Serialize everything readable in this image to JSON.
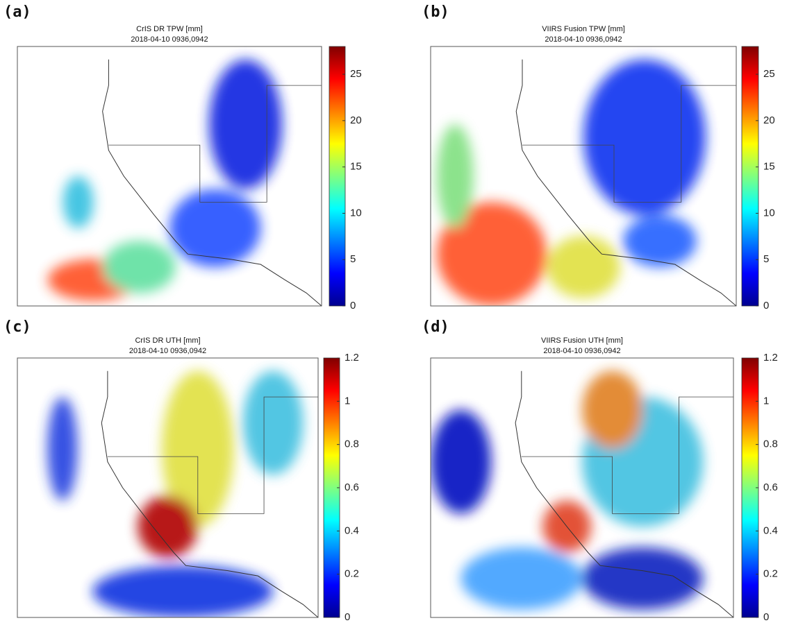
{
  "panels": [
    {
      "label": "(a)",
      "title": "CrIS DR TPW [mm]",
      "subtitle": "2018-04-10 0936,0942",
      "colorbar": {
        "lim": [
          0,
          28
        ],
        "ticks": [
          0,
          5,
          10,
          15,
          20,
          25
        ]
      }
    },
    {
      "label": "(b)",
      "title": "VIIRS Fusion TPW [mm]",
      "subtitle": "2018-04-10 0936,0942",
      "colorbar": {
        "lim": [
          0,
          28
        ],
        "ticks": [
          0,
          5,
          10,
          15,
          20,
          25
        ]
      }
    },
    {
      "label": "(c)",
      "title": "CrIS DR UTH [mm]",
      "subtitle": "2018-04-10 0936,0942",
      "colorbar": {
        "lim": [
          0,
          1.2
        ],
        "ticks": [
          0,
          0.2,
          0.4,
          0.6,
          0.8,
          1,
          1.2
        ]
      }
    },
    {
      "label": "(d)",
      "title": "VIIRS Fusion UTH [mm]",
      "subtitle": "2018-04-10 0936,0942",
      "colorbar": {
        "lim": [
          0,
          1.2
        ],
        "ticks": [
          0,
          0.2,
          0.4,
          0.6,
          0.8,
          1,
          1.2
        ]
      }
    }
  ]
}
